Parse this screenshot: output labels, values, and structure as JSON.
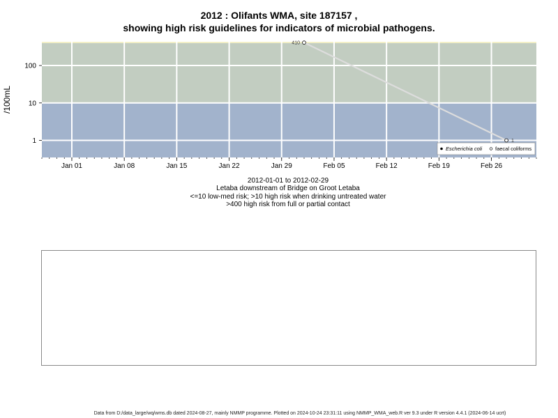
{
  "chart_data": {
    "type": "line",
    "title_line1": "2012 : Olifants WMA, site 187157 ,",
    "title_line2": "showing high risk guidelines for indicators of microbial pathogens.",
    "ylabel": "/100mL",
    "y_scale": "log",
    "ylim": [
      0.35,
      430
    ],
    "y_ticks": [
      {
        "value": 1,
        "label": "1"
      },
      {
        "value": 10,
        "label": "10"
      },
      {
        "value": 100,
        "label": "100"
      }
    ],
    "x_range": [
      "2011-12-28",
      "2012-03-03"
    ],
    "x_ticks": [
      {
        "date": "2012-01-01",
        "label": "Jan 01"
      },
      {
        "date": "2012-01-08",
        "label": "Jan 08"
      },
      {
        "date": "2012-01-15",
        "label": "Jan 15"
      },
      {
        "date": "2012-01-22",
        "label": "Jan 22"
      },
      {
        "date": "2012-01-29",
        "label": "Jan 29"
      },
      {
        "date": "2012-02-05",
        "label": "Feb 05"
      },
      {
        "date": "2012-02-12",
        "label": "Feb 12"
      },
      {
        "date": "2012-02-19",
        "label": "Feb 19"
      },
      {
        "date": "2012-02-26",
        "label": "Feb 26"
      }
    ],
    "risk_bands": [
      {
        "from": 0.35,
        "to": 10,
        "color": "#a2b3cc"
      },
      {
        "from": 10,
        "to": 400,
        "color": "#c2cdc1"
      },
      {
        "from": 400,
        "to": 430,
        "color": "#f7f2c4"
      }
    ],
    "grid": true,
    "series": [
      {
        "name": "faecal coliforms",
        "marker": "open-circle",
        "color": "#dddddd",
        "points": [
          {
            "date": "2012-02-01",
            "value": 410,
            "label": "410"
          },
          {
            "date": "2012-02-28",
            "value": 1,
            "label": "1"
          }
        ]
      }
    ],
    "legend": {
      "position": "bottom-right",
      "entries": [
        {
          "label": "Escherichia coli",
          "marker": "filled-circle",
          "italic": true
        },
        {
          "label": "faecal coliforms",
          "marker": "open-circle",
          "italic": false
        }
      ]
    }
  },
  "caption": {
    "date_range": "2012-01-01 to 2012-02-29",
    "site_name": "Letaba downstream of Bridge on Groot Letaba",
    "risk_low": "<=10 low-med risk; >10 high risk when drinking untreated water",
    "risk_high": ">400 high risk from full or partial contact"
  },
  "footer": "Data from D:/data_large/wq/wms.db dated 2024-08-27, mainly NMMP programme. Plotted on 2024-10-24 23:31:11 using NMMP_WMA_web.R ver 9.3 under R version 4.4.1 (2024-06-14 ucrt)"
}
